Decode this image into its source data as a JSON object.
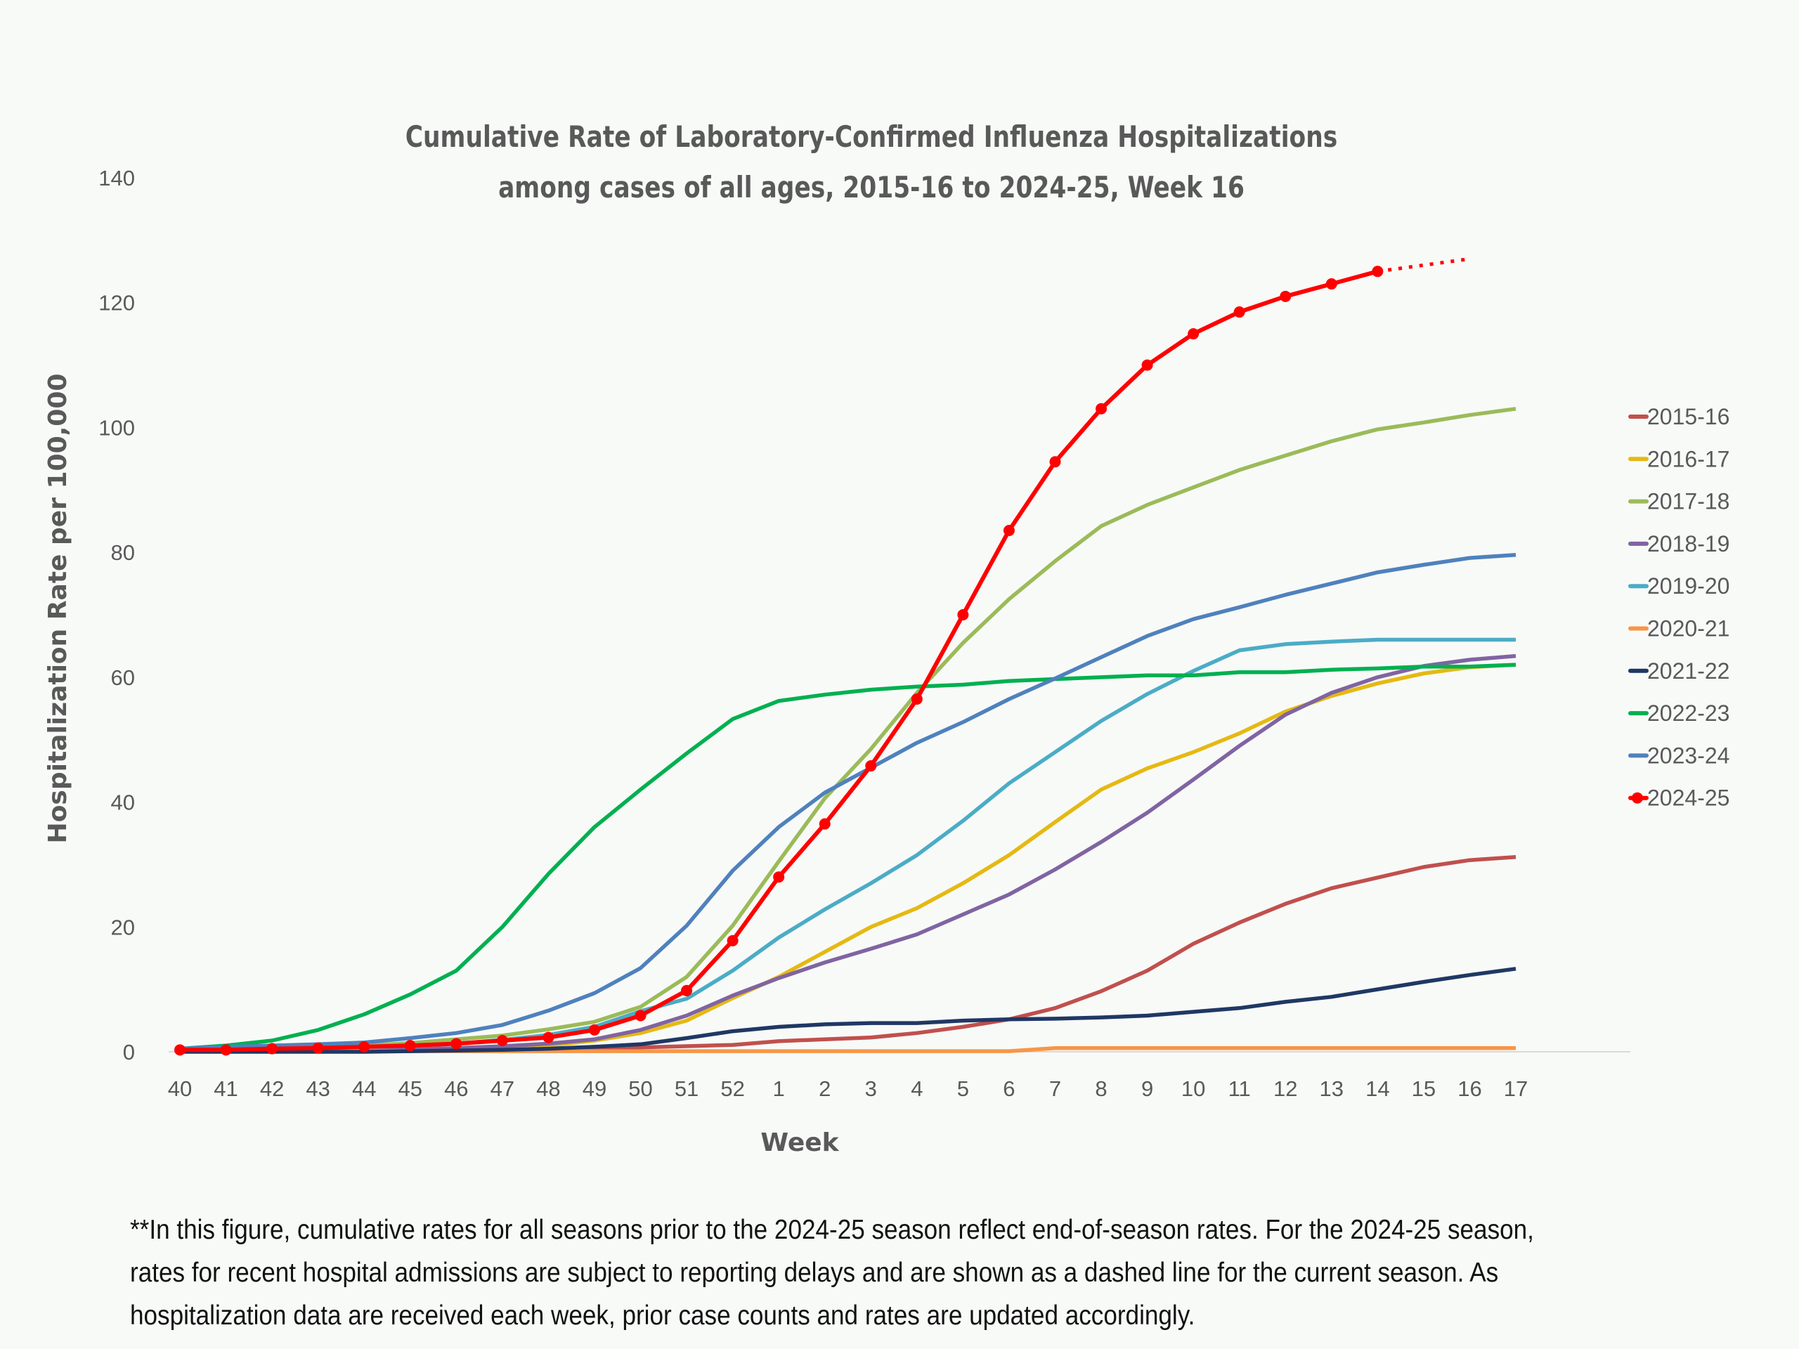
{
  "chart_data": {
    "type": "line",
    "title": "Cumulative Rate of Laboratory-Confirmed Influenza Hospitalizations",
    "subtitle": "among cases of all ages, 2015-16 to 2024-25, Week 16",
    "xlabel": "Week",
    "ylabel": "Hospitalization Rate per 100,000",
    "ylim": [
      0,
      140
    ],
    "yticks": [
      "0",
      "20",
      "40",
      "60",
      "80",
      "100",
      "120",
      "140"
    ],
    "grid": false,
    "legend": "right",
    "categories": [
      "40",
      "41",
      "42",
      "43",
      "44",
      "45",
      "46",
      "47",
      "48",
      "49",
      "50",
      "51",
      "52",
      "1",
      "2",
      "3",
      "4",
      "5",
      "6",
      "7",
      "8",
      "9",
      "10",
      "11",
      "12",
      "13",
      "14",
      "15",
      "16",
      "17"
    ],
    "series": [
      {
        "name": "2015-16",
        "color": "#c0504d",
        "values": [
          0.1,
          0.1,
          0.1,
          0.1,
          0.1,
          0.2,
          0.2,
          0.3,
          0.4,
          0.5,
          0.7,
          0.9,
          1.1,
          1.7,
          2,
          2.3,
          3,
          4,
          5.2,
          7,
          9.7,
          13,
          17.3,
          20.7,
          23.7,
          26.2,
          27.9,
          29.6,
          30.7,
          31.2
        ]
      },
      {
        "name": "2016-17",
        "color": "#e5b913",
        "values": [
          0.1,
          0.1,
          0.2,
          0.2,
          0.3,
          0.4,
          0.5,
          0.7,
          1,
          1.8,
          3,
          5,
          8.6,
          12,
          16,
          20,
          23,
          27,
          31.5,
          36.8,
          42,
          45.4,
          48,
          51,
          54.5,
          57,
          59,
          60.6,
          61.6,
          62
        ]
      },
      {
        "name": "2017-18",
        "color": "#9bbb59",
        "values": [
          0.3,
          0.4,
          0.5,
          0.7,
          1,
          1.4,
          2,
          2.6,
          3.6,
          4.8,
          7.2,
          12,
          20.2,
          30.5,
          40.6,
          48.5,
          57.5,
          65.5,
          72.5,
          78.6,
          84.2,
          87.6,
          90.4,
          93.2,
          95.5,
          97.8,
          99.7,
          100.8,
          102,
          103
        ]
      },
      {
        "name": "2018-19",
        "color": "#8064a2",
        "values": [
          0.1,
          0.1,
          0.2,
          0.2,
          0.3,
          0.4,
          0.6,
          0.9,
          1.3,
          2,
          3.5,
          5.8,
          9,
          11.8,
          14.3,
          16.5,
          18.8,
          22,
          25.2,
          29.2,
          33.6,
          38.3,
          43.6,
          49,
          54,
          57.5,
          60,
          61.8,
          62.8,
          63.4
        ]
      },
      {
        "name": "2019-20",
        "color": "#4bacc6",
        "values": [
          0.2,
          0.3,
          0.4,
          0.5,
          0.7,
          1,
          1.3,
          1.9,
          2.7,
          4,
          6.5,
          8.5,
          13,
          18.3,
          22.8,
          27,
          31.5,
          37,
          43,
          48,
          53,
          57.3,
          61,
          64.3,
          65.3,
          65.7,
          66,
          66,
          66,
          66
        ]
      },
      {
        "name": "2020-21",
        "color": "#f79646",
        "values": [
          0.1,
          0.1,
          0.1,
          0.1,
          0.1,
          0.1,
          0.1,
          0.1,
          0.1,
          0.1,
          0.1,
          0.1,
          0.1,
          0.1,
          0.1,
          0.1,
          0.1,
          0.1,
          0.1,
          0.6,
          0.6,
          0.6,
          0.6,
          0.6,
          0.6,
          0.6,
          0.6,
          0.6,
          0.6,
          0.6
        ]
      },
      {
        "name": "2021-22",
        "color": "#1f3864",
        "values": [
          0,
          0,
          0,
          0,
          0,
          0.1,
          0.2,
          0.3,
          0.5,
          0.8,
          1.2,
          2.2,
          3.3,
          4,
          4.4,
          4.6,
          4.6,
          5,
          5.2,
          5.3,
          5.5,
          5.8,
          6.4,
          7,
          8,
          8.8,
          10,
          11.2,
          12.3,
          13.3
        ]
      },
      {
        "name": "2022-23",
        "color": "#00b050",
        "values": [
          0.5,
          1,
          1.8,
          3.5,
          6,
          9.2,
          13,
          20,
          28.5,
          36,
          42,
          47.8,
          53.3,
          56.2,
          57.2,
          58,
          58.5,
          58.8,
          59.4,
          59.7,
          60,
          60.3,
          60.3,
          60.8,
          60.8,
          61.2,
          61.4,
          61.7,
          61.7,
          62
        ]
      },
      {
        "name": "2023-24",
        "color": "#4f81bd",
        "values": [
          0.5,
          0.8,
          1,
          1.2,
          1.5,
          2.2,
          3,
          4.3,
          6.6,
          9.4,
          13.4,
          20.2,
          29,
          36,
          41.5,
          45.5,
          49.5,
          52.8,
          56.5,
          59.8,
          63.2,
          66.6,
          69.3,
          71.2,
          73.2,
          75,
          76.8,
          78,
          79.1,
          79.6
        ]
      },
      {
        "name": "2024-25",
        "color": "#ff0000",
        "markers": true,
        "values": [
          0.3,
          0.3,
          0.5,
          0.6,
          0.8,
          1,
          1.3,
          1.8,
          2.3,
          3.5,
          5.8,
          9.8,
          17.8,
          28,
          36.5,
          45.8,
          56.5,
          70,
          83.5,
          94.5,
          103,
          110,
          115,
          118.5,
          121,
          123,
          125,
          null,
          null,
          null
        ],
        "dashed_values": [
          null,
          null,
          null,
          null,
          null,
          null,
          null,
          null,
          null,
          null,
          null,
          null,
          null,
          null,
          null,
          null,
          null,
          null,
          null,
          null,
          null,
          null,
          null,
          null,
          null,
          null,
          125,
          126,
          127,
          null
        ]
      }
    ],
    "footnote": "**In this figure, cumulative rates for all seasons prior to the 2024-25 season reflect end-of-season rates. For the 2024-25 season, rates for recent hospital admissions are subject to reporting delays and are shown as a dashed line for the current season. As hospitalization data are received each week, prior case counts and rates are updated accordingly."
  }
}
